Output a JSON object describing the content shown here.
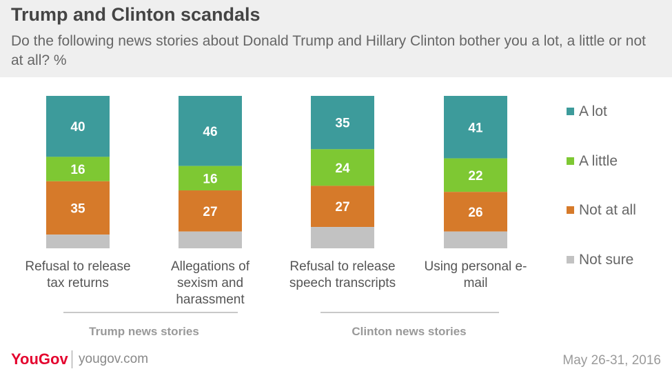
{
  "title": "Trump and Clinton scandals",
  "subtitle": "Do the following news stories about Donald Trump and Hillary Clinton bother you a lot, a little or not at all? %",
  "footer": {
    "logo": "YouGov",
    "site": "yougov.com",
    "date": "May 26-31, 2016"
  },
  "colors": {
    "a_lot": "#3d9b9b",
    "a_little": "#7ec833",
    "not_at_all": "#d67a2a",
    "not_sure": "#c2c2c2"
  },
  "chart_data": {
    "type": "bar",
    "stacked": true,
    "categories": [
      "Refusal to release tax returns",
      "Allegations of sexism and harassment",
      "Refusal to release speech transcripts",
      "Using personal e-mail"
    ],
    "category_lines": [
      [
        "Refusal to release",
        "tax returns"
      ],
      [
        "Allegations of",
        "sexism and",
        "harassment"
      ],
      [
        "Refusal to release",
        "speech transcripts"
      ],
      [
        "Using personal e-",
        "mail"
      ]
    ],
    "groups": [
      {
        "label": "Trump news stories",
        "categories": [
          0,
          1
        ]
      },
      {
        "label": "Clinton news stories",
        "categories": [
          2,
          3
        ]
      }
    ],
    "series": [
      {
        "name": "A lot",
        "values": [
          40,
          46,
          35,
          41
        ]
      },
      {
        "name": "A little",
        "values": [
          16,
          16,
          24,
          22
        ]
      },
      {
        "name": "Not at all",
        "values": [
          35,
          27,
          27,
          26
        ]
      },
      {
        "name": "Not sure",
        "values": [
          9,
          11,
          14,
          11
        ]
      }
    ],
    "value_labels_shown_for": [
      "A lot",
      "A little",
      "Not at all"
    ],
    "ylim": [
      0,
      100
    ],
    "legend_position": "right"
  }
}
